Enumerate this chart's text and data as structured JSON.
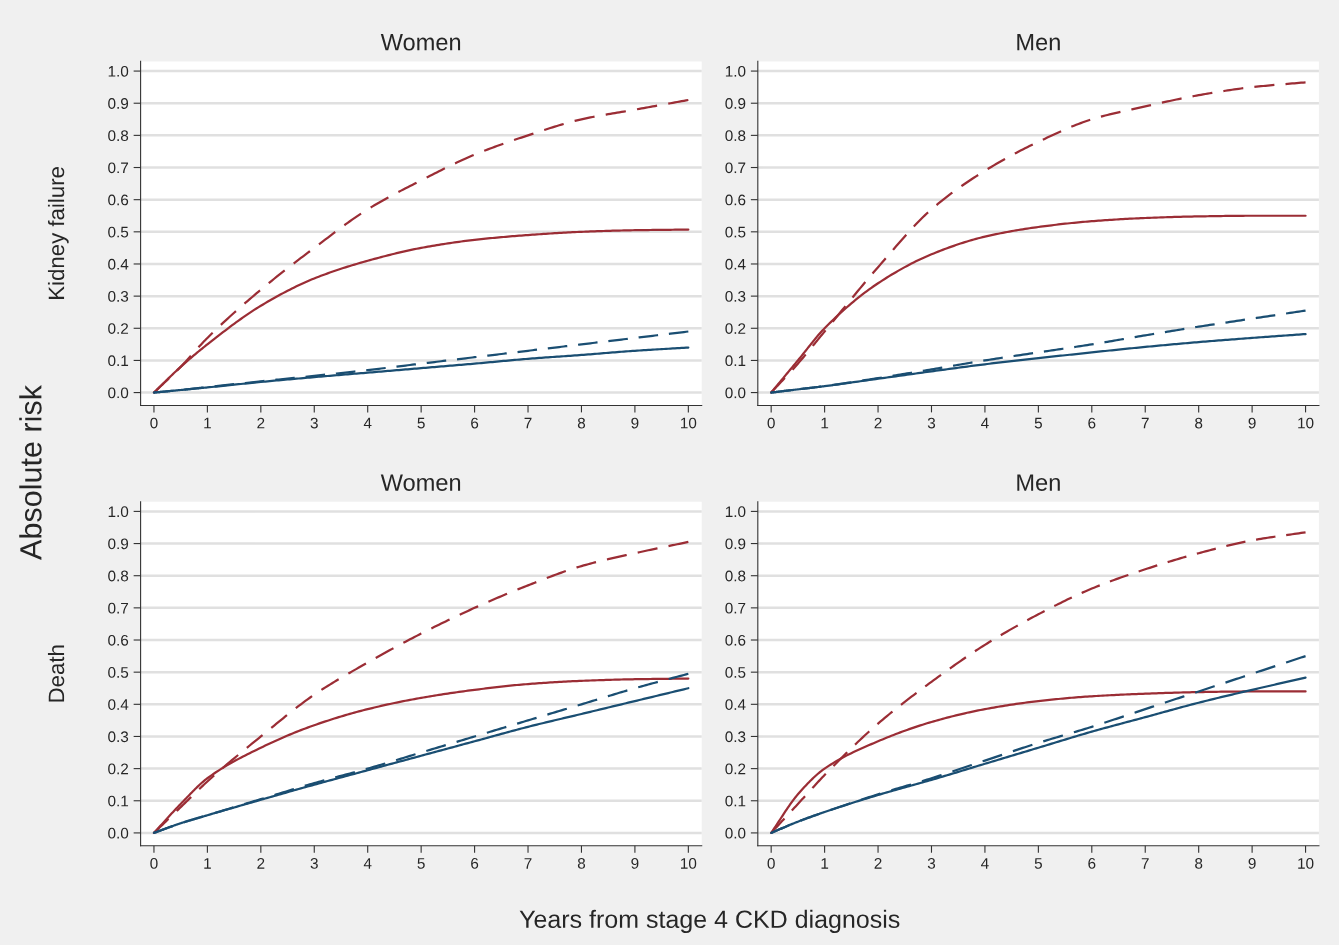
{
  "chart_data": [
    {
      "type": "line",
      "title": "Women",
      "ylabel": "Kidney failure",
      "annotations": [
        "Absolute risk"
      ],
      "grid": "y",
      "legend": false,
      "xlim": [
        -0.25,
        10.25
      ],
      "ylim": [
        -0.04,
        1.03
      ],
      "xticks": [
        0,
        1,
        2,
        3,
        4,
        5,
        6,
        7,
        8,
        9,
        10
      ],
      "yticks": [
        {
          "value": 0,
          "label": "0.0"
        },
        {
          "value": 0.1,
          "label": "0.1"
        },
        {
          "value": 0.2,
          "label": "0.2"
        },
        {
          "value": 0.3,
          "label": "0.3"
        },
        {
          "value": 0.4,
          "label": "0.4"
        },
        {
          "value": 0.5,
          "label": "0.5"
        },
        {
          "value": 0.6,
          "label": "0.6"
        },
        {
          "value": 0.7,
          "label": "0.7"
        },
        {
          "value": 0.8,
          "label": "0.8"
        },
        {
          "value": 0.9,
          "label": "0.9"
        },
        {
          "value": 1,
          "label": "1.0"
        }
      ],
      "x": [
        0,
        0.5,
        1,
        2,
        3,
        4,
        5,
        6,
        7,
        8,
        9,
        10
      ],
      "series": [
        {
          "color": "#9b2d35",
          "line_style": "dashed",
          "values": [
            0,
            0.08,
            0.17,
            0.32,
            0.45,
            0.57,
            0.66,
            0.74,
            0.8,
            0.85,
            0.88,
            0.91
          ]
        },
        {
          "color": "#9b2d35",
          "line_style": "solid",
          "values": [
            0,
            0.08,
            0.15,
            0.27,
            0.355,
            0.41,
            0.45,
            0.475,
            0.49,
            0.5,
            0.505,
            0.507
          ]
        },
        {
          "color": "#1a4e72",
          "line_style": "dashed",
          "values": [
            0,
            0.008,
            0.017,
            0.035,
            0.052,
            0.07,
            0.09,
            0.11,
            0.13,
            0.15,
            0.17,
            0.19
          ]
        },
        {
          "color": "#1a4e72",
          "line_style": "solid",
          "values": [
            0,
            0.008,
            0.016,
            0.033,
            0.048,
            0.062,
            0.076,
            0.09,
            0.105,
            0.117,
            0.13,
            0.14
          ]
        }
      ]
    },
    {
      "type": "line",
      "title": "Men",
      "grid": "y",
      "legend": false,
      "xlim": [
        -0.25,
        10.25
      ],
      "ylim": [
        -0.04,
        1.03
      ],
      "xticks": [
        0,
        1,
        2,
        3,
        4,
        5,
        6,
        7,
        8,
        9,
        10
      ],
      "yticks": [
        {
          "value": 0,
          "label": "0.0"
        },
        {
          "value": 0.1,
          "label": "0.1"
        },
        {
          "value": 0.2,
          "label": "0.2"
        },
        {
          "value": 0.3,
          "label": "0.3"
        },
        {
          "value": 0.4,
          "label": "0.4"
        },
        {
          "value": 0.5,
          "label": "0.5"
        },
        {
          "value": 0.6,
          "label": "0.6"
        },
        {
          "value": 0.7,
          "label": "0.7"
        },
        {
          "value": 0.8,
          "label": "0.8"
        },
        {
          "value": 0.9,
          "label": "0.9"
        },
        {
          "value": 1,
          "label": "1.0"
        }
      ],
      "x": [
        0,
        0.5,
        1,
        2,
        3,
        4,
        5,
        6,
        7,
        8,
        9,
        10
      ],
      "series": [
        {
          "color": "#9b2d35",
          "line_style": "dashed",
          "values": [
            0,
            0.09,
            0.19,
            0.39,
            0.57,
            0.69,
            0.78,
            0.85,
            0.89,
            0.925,
            0.95,
            0.965
          ]
        },
        {
          "color": "#9b2d35",
          "line_style": "solid",
          "values": [
            0,
            0.1,
            0.2,
            0.34,
            0.43,
            0.485,
            0.515,
            0.533,
            0.543,
            0.548,
            0.55,
            0.55
          ]
        },
        {
          "color": "#1a4e72",
          "line_style": "dashed",
          "values": [
            0,
            0.01,
            0.02,
            0.045,
            0.072,
            0.1,
            0.125,
            0.15,
            0.178,
            0.205,
            0.23,
            0.255
          ]
        },
        {
          "color": "#1a4e72",
          "line_style": "solid",
          "values": [
            0,
            0.01,
            0.02,
            0.043,
            0.066,
            0.088,
            0.107,
            0.125,
            0.142,
            0.157,
            0.17,
            0.182
          ]
        }
      ]
    },
    {
      "type": "line",
      "title": "Women",
      "ylabel": "Death",
      "grid": "y",
      "legend": false,
      "xlim": [
        -0.25,
        10.25
      ],
      "ylim": [
        -0.04,
        1.03
      ],
      "xticks": [
        0,
        1,
        2,
        3,
        4,
        5,
        6,
        7,
        8,
        9,
        10
      ],
      "yticks": [
        {
          "value": 0,
          "label": "0.0"
        },
        {
          "value": 0.1,
          "label": "0.1"
        },
        {
          "value": 0.2,
          "label": "0.2"
        },
        {
          "value": 0.3,
          "label": "0.3"
        },
        {
          "value": 0.4,
          "label": "0.4"
        },
        {
          "value": 0.5,
          "label": "0.5"
        },
        {
          "value": 0.6,
          "label": "0.6"
        },
        {
          "value": 0.7,
          "label": "0.7"
        },
        {
          "value": 0.8,
          "label": "0.8"
        },
        {
          "value": 0.9,
          "label": "0.9"
        },
        {
          "value": 1,
          "label": "1.0"
        }
      ],
      "x": [
        0,
        0.5,
        1,
        2,
        3,
        4,
        5,
        6,
        7,
        8,
        9,
        10
      ],
      "series": [
        {
          "color": "#9b2d35",
          "line_style": "dashed",
          "values": [
            0,
            0.08,
            0.16,
            0.3,
            0.43,
            0.53,
            0.62,
            0.7,
            0.77,
            0.83,
            0.87,
            0.905
          ]
        },
        {
          "color": "#9b2d35",
          "line_style": "solid",
          "values": [
            0,
            0.09,
            0.17,
            0.265,
            0.335,
            0.385,
            0.42,
            0.445,
            0.463,
            0.473,
            0.478,
            0.48
          ]
        },
        {
          "color": "#1a4e72",
          "line_style": "dashed",
          "values": [
            0,
            0.03,
            0.055,
            0.105,
            0.155,
            0.2,
            0.25,
            0.3,
            0.35,
            0.4,
            0.45,
            0.495
          ]
        },
        {
          "color": "#1a4e72",
          "line_style": "solid",
          "values": [
            0,
            0.03,
            0.055,
            0.103,
            0.15,
            0.195,
            0.24,
            0.285,
            0.33,
            0.37,
            0.41,
            0.45
          ]
        }
      ]
    },
    {
      "type": "line",
      "title": "Men",
      "annotations": [
        "Years from stage 4 CKD diagnosis"
      ],
      "grid": "y",
      "legend": false,
      "xlim": [
        -0.25,
        10.25
      ],
      "ylim": [
        -0.04,
        1.03
      ],
      "xticks": [
        0,
        1,
        2,
        3,
        4,
        5,
        6,
        7,
        8,
        9,
        10
      ],
      "yticks": [
        {
          "value": 0,
          "label": "0.0"
        },
        {
          "value": 0.1,
          "label": "0.1"
        },
        {
          "value": 0.2,
          "label": "0.2"
        },
        {
          "value": 0.3,
          "label": "0.3"
        },
        {
          "value": 0.4,
          "label": "0.4"
        },
        {
          "value": 0.5,
          "label": "0.5"
        },
        {
          "value": 0.6,
          "label": "0.6"
        },
        {
          "value": 0.7,
          "label": "0.7"
        },
        {
          "value": 0.8,
          "label": "0.8"
        },
        {
          "value": 0.9,
          "label": "0.9"
        },
        {
          "value": 1,
          "label": "1.0"
        }
      ],
      "x": [
        0,
        0.5,
        1,
        2,
        3,
        4,
        5,
        6,
        7,
        8,
        9,
        10
      ],
      "series": [
        {
          "color": "#9b2d35",
          "line_style": "dashed",
          "values": [
            0,
            0.09,
            0.18,
            0.34,
            0.47,
            0.585,
            0.68,
            0.76,
            0.82,
            0.87,
            0.91,
            0.935
          ]
        },
        {
          "color": "#9b2d35",
          "line_style": "solid",
          "values": [
            0,
            0.12,
            0.2,
            0.285,
            0.345,
            0.385,
            0.41,
            0.425,
            0.433,
            0.438,
            0.44,
            0.44
          ]
        },
        {
          "color": "#1a4e72",
          "line_style": "dashed",
          "values": [
            0,
            0.035,
            0.065,
            0.12,
            0.17,
            0.225,
            0.28,
            0.33,
            0.385,
            0.44,
            0.495,
            0.55
          ]
        },
        {
          "color": "#1a4e72",
          "line_style": "solid",
          "values": [
            0,
            0.035,
            0.065,
            0.118,
            0.165,
            0.215,
            0.265,
            0.315,
            0.36,
            0.405,
            0.445,
            0.483
          ]
        }
      ]
    }
  ]
}
